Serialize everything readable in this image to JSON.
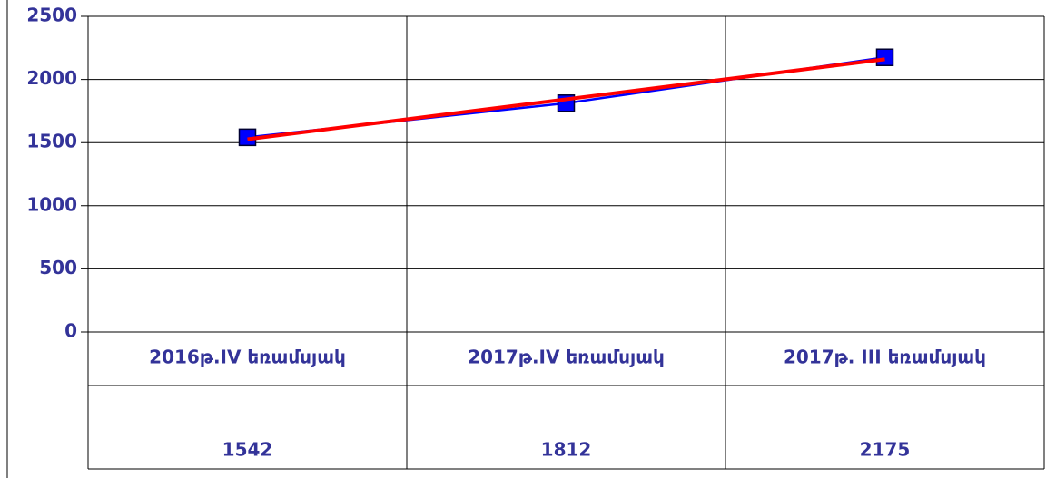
{
  "chart_data": {
    "type": "line",
    "categories": [
      "2016թ.IV  եռամսյակ",
      "2017թ.IV  եռամսյակ",
      "2017թ. III եռամսյակ"
    ],
    "series": [
      {
        "color": "#0000ff",
        "marker": "square",
        "values": [
          1542,
          1812,
          2175
        ]
      },
      {
        "color": "#ff0000",
        "marker": "none",
        "values": [
          1526.5,
          1843,
          2159.5
        ]
      }
    ],
    "ylim": [
      0,
      2500
    ],
    "yticks": [
      0,
      500,
      1000,
      1500,
      2000,
      2500
    ],
    "grid": true
  }
}
